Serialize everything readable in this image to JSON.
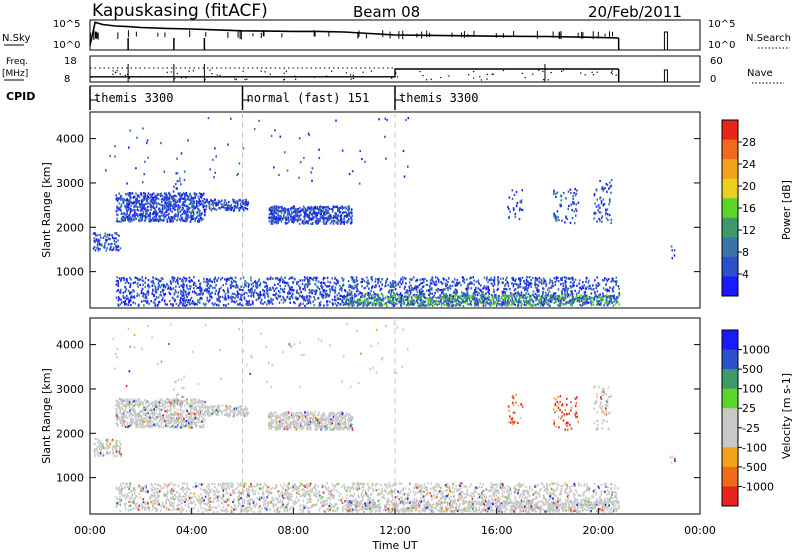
{
  "header": {
    "station": "Kapuskasing (fitACF)",
    "beam": "Beam 08",
    "date": "20/Feb/2011"
  },
  "colors": {
    "power": [
      "#1a1aff",
      "#2b50c8",
      "#3a73a8",
      "#3e9a6a",
      "#5dd62b",
      "#e8d020",
      "#f2a21b",
      "#ef6a1d",
      "#e8251b"
    ],
    "velocity": [
      "#e8251b",
      "#ef6a1d",
      "#f2a21b",
      "#c8c8c8",
      "#c8c8c8",
      "#5dd62b",
      "#3e9a6a",
      "#2b50c8",
      "#1a1aff"
    ],
    "dash": "#c8c8c8"
  },
  "chart_data": [
    {
      "type": "line",
      "panel": "noise",
      "left_label": "N.Sky",
      "right_label": "N.Search",
      "y_ticks_left": [
        "10^5",
        "10^0"
      ],
      "y_ticks_right": [
        "10^5",
        "10^0"
      ],
      "series": [
        {
          "name": "N.Sky",
          "x": [
            0.0,
            0.2,
            0.5,
            1.0,
            1.5,
            2.0,
            3.0,
            4.0,
            5.0,
            6.0,
            7.0,
            8.0,
            9.0,
            10.0,
            11.0,
            12.0,
            14.0,
            16.0,
            18.0,
            20.0,
            20.8
          ],
          "y": [
            0.15,
            0.92,
            0.85,
            0.8,
            0.78,
            0.75,
            0.72,
            0.7,
            0.67,
            0.64,
            0.63,
            0.62,
            0.62,
            0.6,
            0.55,
            0.5,
            0.48,
            0.46,
            0.45,
            0.42,
            0.4
          ]
        }
      ]
    },
    {
      "type": "line",
      "panel": "frequency",
      "left_label": "Freq.",
      "left_unit": "[MHz]",
      "right_label": "Nave",
      "y_ticks_left": [
        "18",
        "8"
      ],
      "y_ticks_right": [
        "60",
        "0"
      ],
      "series": [
        {
          "name": "Freq",
          "x": [
            0,
            12,
            12,
            20.8
          ],
          "y": [
            10,
            10,
            13,
            13
          ]
        }
      ]
    },
    {
      "type": "table",
      "panel": "cpid",
      "label": "CPID",
      "segments": [
        {
          "name": "themis 3300",
          "start": 0,
          "end": 6
        },
        {
          "name": "normal (fast) 151",
          "start": 6,
          "end": 12
        },
        {
          "name": "themis 3300",
          "start": 12,
          "end": 24
        }
      ]
    },
    {
      "type": "heatmap",
      "panel": "power",
      "ylabel": "Slant Range [km]",
      "ylim": [
        180,
        4600
      ],
      "yticks": [
        1000,
        2000,
        3000,
        4000
      ],
      "colorbar_label": "Power [dB]",
      "colorbar_ticks": [
        "28",
        "24",
        "20",
        "16",
        "12",
        "8",
        "4"
      ],
      "dashed_x": [
        6,
        12
      ]
    },
    {
      "type": "heatmap",
      "panel": "velocity",
      "ylabel": "Slant Range [km]",
      "xlabel": "Time UT",
      "ylim": [
        180,
        4600
      ],
      "yticks": [
        1000,
        2000,
        3000,
        4000
      ],
      "xlim": [
        0,
        24
      ],
      "xticks": [
        "00:00",
        "04:00",
        "08:00",
        "12:00",
        "16:00",
        "20:00",
        "00:00"
      ],
      "colorbar_label": "Velocity [m s-1]",
      "colorbar_ticks": [
        "1000",
        "500",
        "100",
        "25",
        "-25",
        "-100",
        "-500",
        "-1000"
      ],
      "dashed_x": [
        6,
        12
      ]
    }
  ]
}
